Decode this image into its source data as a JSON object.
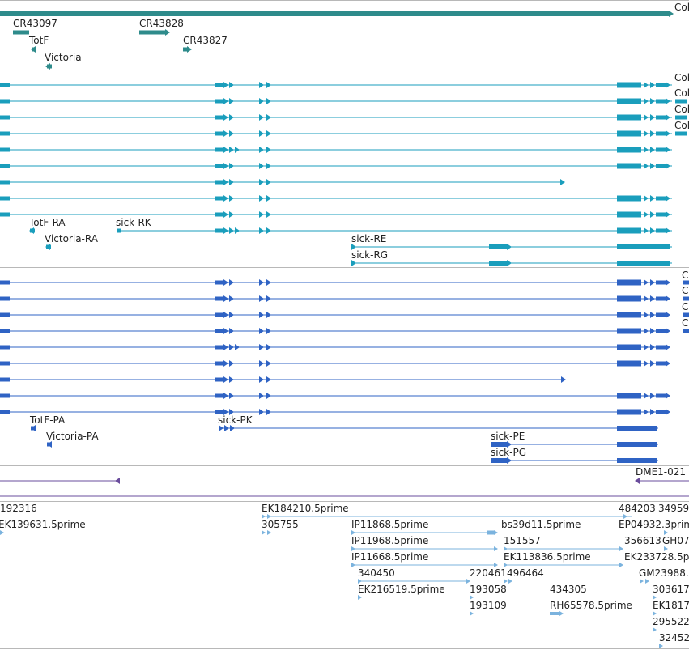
{
  "colors": {
    "ncrna": "#2e8b8b",
    "transcript": "#1a9ebc",
    "protein": "#2f63c4",
    "purple": "#6a4c9c",
    "est": "#7bb3de",
    "separator": "#b8b8b8"
  },
  "tracks": {
    "ncrna": {
      "labels": [
        "CR43097",
        "TotF",
        "Victoria",
        "CR43828",
        "CR43827",
        "Col"
      ]
    },
    "transcripts": {
      "labels": [
        "Col",
        "Col",
        "Col",
        "Col",
        "TotF-RA",
        "Victoria-RA",
        "sick-RK",
        "sick-RE",
        "sick-RG"
      ]
    },
    "proteins": {
      "labels": [
        "C",
        "C",
        "C",
        "C",
        "TotF-PA",
        "Victoria-PA",
        "sick-PK",
        "sick-PE",
        "sick-PG"
      ]
    },
    "misc": {
      "labels": [
        "DME1-021"
      ]
    },
    "est": {
      "labels": [
        "192316",
        "EK139631.5prime",
        "EK184210.5prime",
        "305755",
        "484203",
        "34959",
        "IP11868.5prime",
        "bs39d11.5prime",
        "EP04932.3prime",
        "IP11968.5prime",
        "151557",
        "356613",
        "GH07",
        "IP11668.5prime",
        "EK113836.5prime",
        "EK233728.5p",
        "340450",
        "220461",
        "496464",
        "GM23988.",
        "EK216519.5prime",
        "193058",
        "434305",
        "303617",
        "193109",
        "RH65578.5prime",
        "EK1817",
        "295522",
        "32452"
      ]
    }
  }
}
